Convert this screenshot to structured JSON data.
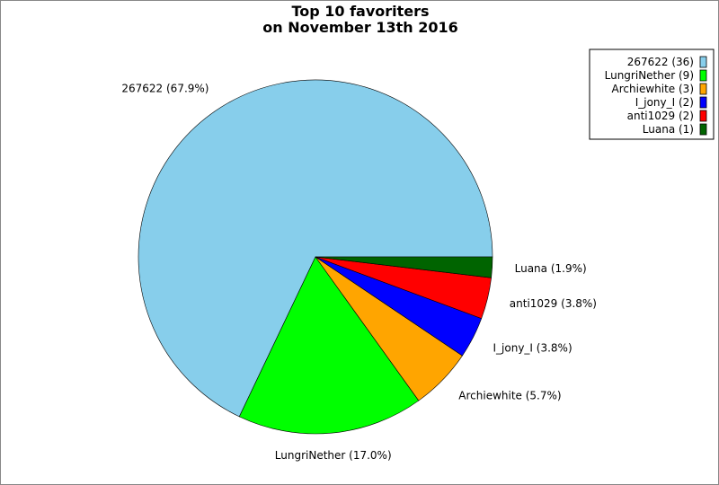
{
  "chart_data": {
    "type": "pie",
    "title": [
      "Top 10 favoriters",
      "on November 13th 2016"
    ],
    "start": "east, counterclockwise",
    "slices": [
      {
        "name": "267622",
        "value": 36,
        "percent": 67.9,
        "color": "#87ceeb",
        "label": "267622 (67.9%)",
        "legend": "267622 (36)"
      },
      {
        "name": "LungriNether",
        "value": 9,
        "percent": 17.0,
        "color": "#00ff00",
        "label": "LungriNether (17.0%)",
        "legend": "LungriNether (9)"
      },
      {
        "name": "Archiewhite",
        "value": 3,
        "percent": 5.7,
        "color": "#ffa500",
        "label": "Archiewhite (5.7%)",
        "legend": "Archiewhite (3)"
      },
      {
        "name": "I_jony_I",
        "value": 2,
        "percent": 3.8,
        "color": "#0000ff",
        "label": "I_jony_I (3.8%)",
        "legend": "I_jony_I (2)"
      },
      {
        "name": "anti1029",
        "value": 2,
        "percent": 3.8,
        "color": "#ff0000",
        "label": "anti1029 (3.8%)",
        "legend": "anti1029 (2)"
      },
      {
        "name": "Luana",
        "value": 1,
        "percent": 1.9,
        "color": "#006400",
        "label": "Luana (1.9%)",
        "legend": "Luana (1)"
      }
    ],
    "legend_placement": "top-right"
  }
}
